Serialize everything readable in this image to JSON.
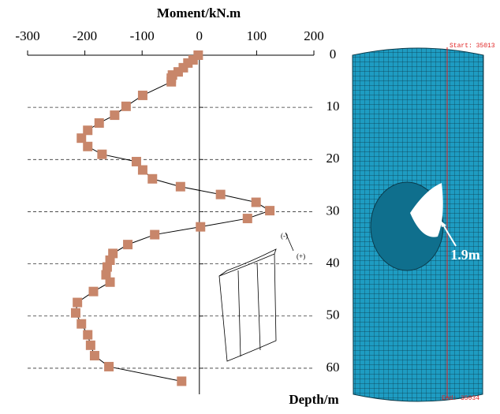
{
  "chart_data": {
    "type": "line",
    "x_label": "Moment/kN.m",
    "y_label": "Depth/m",
    "xlim": [
      -300,
      200
    ],
    "xticks": [
      -300,
      -200,
      -100,
      0,
      100,
      200
    ],
    "ylim": [
      0,
      65
    ],
    "yticks": [
      0,
      10,
      20,
      30,
      40,
      50,
      60
    ],
    "y_inverted": true,
    "grid": true,
    "color": "#c8866a",
    "x": [
      0,
      0.9,
      1.5,
      2.4,
      3.2,
      3.8,
      4.4,
      5.1,
      7.7,
      9.8,
      11.5,
      13,
      14.4,
      15.9,
      17.5,
      19,
      20.4,
      22,
      23.7,
      25.2,
      26.7,
      28.2,
      29.8,
      31.3,
      32.9,
      34.4,
      36.3,
      38,
      39.3,
      40.6,
      42.1,
      43.5,
      45.3,
      47.4,
      49.4,
      51.5,
      53.6,
      55.6,
      57.6,
      59.7,
      62.5
    ],
    "values": [
      -2,
      -11,
      -20,
      -28,
      -37,
      -47,
      -49,
      -49,
      -99,
      -128,
      -148,
      -175,
      -195,
      -206,
      -195,
      -170,
      -110,
      -99,
      -82,
      -33,
      37,
      99,
      123,
      84,
      2,
      -78,
      -125,
      -151,
      -156,
      -161,
      -163,
      -156,
      -185,
      -213,
      -216,
      -206,
      -195,
      -190,
      -183,
      -158,
      -31
    ],
    "sign_labels": [
      "(-)",
      "(+)"
    ]
  },
  "model": {
    "annotation": "1.9m",
    "start_label": "Start: 35013",
    "end_label": "End: 35034"
  }
}
